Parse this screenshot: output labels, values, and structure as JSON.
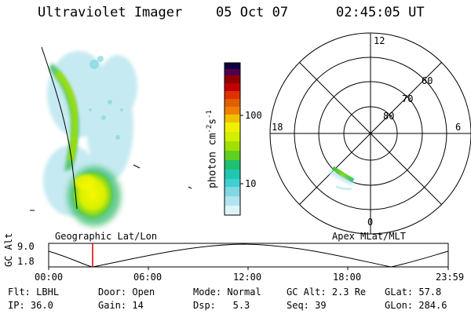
{
  "header": {
    "instrument": "Ultraviolet Imager",
    "date": "05 Oct 07",
    "time": "02:45:05 UT"
  },
  "colorbar": {
    "label": "photon cm^-2 s^-1",
    "tick_labels": [
      "100",
      "10"
    ],
    "tick_values": [
      100,
      10
    ],
    "scale": "log",
    "colors": [
      "#ffffff",
      "#c8e8f0",
      "#80d8e0",
      "#20c8c8",
      "#20c070",
      "#60d020",
      "#b0e000",
      "#f0f000",
      "#f0c000",
      "#f08000",
      "#e03000",
      "#c00000",
      "#900000",
      "#500050",
      "#100040"
    ]
  },
  "polar": {
    "mlt_labels": {
      "top": "12",
      "left": "18",
      "right": "6",
      "bottom": "0"
    },
    "lat_labels": [
      "60",
      "70",
      "80"
    ]
  },
  "timeline": {
    "left_label": "Geographic Lat/Lon",
    "right_label": "Apex MLat/MLT",
    "axis_title": "GC Alt",
    "y_labels": [
      "9.0",
      "1.8"
    ],
    "x_labels": [
      "00:00",
      "06:00",
      "12:00",
      "18:00",
      "23:59"
    ],
    "marker_color": "#e00000"
  },
  "footer": {
    "row1": [
      {
        "k": "Flt:",
        "v": "LBHL"
      },
      {
        "k": "Door:",
        "v": "Open"
      },
      {
        "k": "Mode:",
        "v": "Normal"
      },
      {
        "k": "GC Alt:",
        "v": "2.3 Re"
      },
      {
        "k": "GLat:",
        "v": "57.8"
      }
    ],
    "row2": [
      {
        "k": "IP:",
        "v": "36.0"
      },
      {
        "k": "Gain:",
        "v": "14"
      },
      {
        "k": "Dsp:",
        "v": "5.3"
      },
      {
        "k": "Seq:",
        "v": "39"
      },
      {
        "k": "GLon:",
        "v": "284.6"
      }
    ]
  }
}
